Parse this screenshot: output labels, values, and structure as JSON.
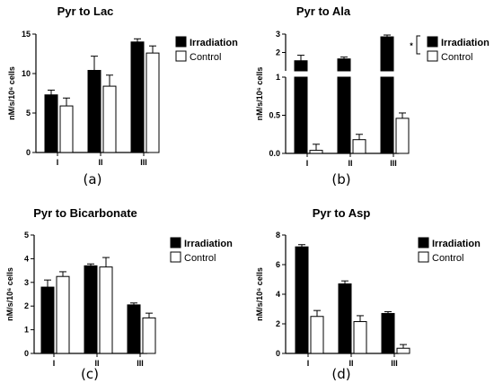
{
  "chart_data": [
    {
      "type": "bar",
      "title": "Pyr to Lac",
      "ylabel": "nM/s/10⁶ cells",
      "categories": [
        "I",
        "II",
        "III"
      ],
      "ylim": [
        0,
        15
      ],
      "yticks": [
        0,
        5,
        10,
        15
      ],
      "series": [
        {
          "name": "Irradiation",
          "color": "#000000",
          "values": [
            7.3,
            10.4,
            14.0
          ],
          "errors": [
            0.6,
            1.8,
            0.4
          ]
        },
        {
          "name": "Control",
          "color": "#ffffff",
          "values": [
            5.9,
            8.4,
            12.6
          ],
          "errors": [
            1.0,
            1.4,
            0.9
          ]
        }
      ],
      "panel_label": "(a)"
    },
    {
      "type": "bar",
      "title": "Pyr to Ala",
      "ylabel": "nM/s/10⁶ cells",
      "categories": [
        "I",
        "II",
        "III"
      ],
      "axis_break": true,
      "ylim_lower": [
        0,
        1
      ],
      "ylim_upper": [
        1,
        3
      ],
      "yticks": [
        "0.0",
        "0.5",
        "1",
        "2",
        "3"
      ],
      "series": [
        {
          "name": "Irradiation",
          "color": "#000000",
          "values": [
            1.55,
            1.65,
            2.85
          ],
          "errors": [
            0.3,
            0.1,
            0.1
          ]
        },
        {
          "name": "Control",
          "color": "#ffffff",
          "values": [
            0.04,
            0.18,
            0.46
          ],
          "errors": [
            0.08,
            0.07,
            0.07
          ]
        }
      ],
      "significance": "*",
      "panel_label": "(b)"
    },
    {
      "type": "bar",
      "title": "Pyr to Bicarbonate",
      "ylabel": "nM/s/10⁶ cells",
      "categories": [
        "I",
        "II",
        "III"
      ],
      "ylim": [
        0,
        5
      ],
      "yticks": [
        0,
        1,
        2,
        3,
        4,
        5
      ],
      "series": [
        {
          "name": "Irradiation",
          "color": "#000000",
          "values": [
            2.8,
            3.7,
            2.05
          ],
          "errors": [
            0.3,
            0.08,
            0.08
          ]
        },
        {
          "name": "Control",
          "color": "#ffffff",
          "values": [
            3.25,
            3.65,
            1.5
          ],
          "errors": [
            0.2,
            0.4,
            0.2
          ]
        }
      ],
      "panel_label": "(c)"
    },
    {
      "type": "bar",
      "title": "Pyr to Asp",
      "ylabel": "nM/s/10⁶ cells",
      "categories": [
        "I",
        "II",
        "III"
      ],
      "ylim": [
        0,
        8
      ],
      "yticks": [
        0,
        2,
        4,
        6,
        8
      ],
      "series": [
        {
          "name": "Irradiation",
          "color": "#000000",
          "values": [
            7.2,
            4.7,
            2.7
          ],
          "errors": [
            0.15,
            0.2,
            0.12
          ]
        },
        {
          "name": "Control",
          "color": "#ffffff",
          "values": [
            2.5,
            2.15,
            0.35
          ],
          "errors": [
            0.4,
            0.4,
            0.25
          ]
        }
      ],
      "panel_label": "(d)"
    }
  ]
}
